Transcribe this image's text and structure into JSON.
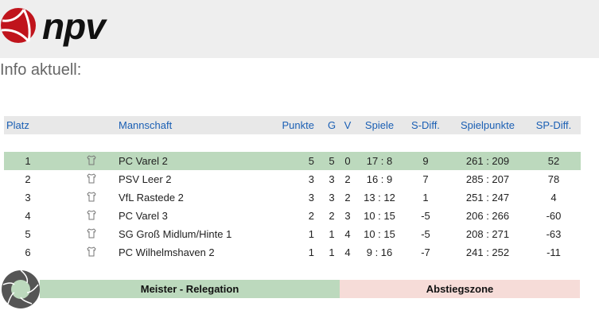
{
  "header": {
    "logo_text": "npv"
  },
  "info_title": "Info aktuell:",
  "table": {
    "columns": [
      "Platz",
      "Mannschaft",
      "Punkte",
      "G",
      "V",
      "Spiele",
      "S-Diff.",
      "Spielpunkte",
      "SP-Diff."
    ],
    "rows": [
      {
        "platz": "1",
        "team": "PC Varel 2",
        "punkte": "5",
        "g": "5",
        "v": "0",
        "spiele": "17 : 8",
        "sdiff": "9",
        "spielpunkte": "261 : 209",
        "spdiff": "52"
      },
      {
        "platz": "2",
        "team": "PSV Leer 2",
        "punkte": "3",
        "g": "3",
        "v": "2",
        "spiele": "16 : 9",
        "sdiff": "7",
        "spielpunkte": "285 : 207",
        "spdiff": "78"
      },
      {
        "platz": "3",
        "team": "VfL Rastede 2",
        "punkte": "3",
        "g": "3",
        "v": "2",
        "spiele": "13 : 12",
        "sdiff": "1",
        "spielpunkte": "251 : 247",
        "spdiff": "4"
      },
      {
        "platz": "4",
        "team": "PC Varel 3",
        "punkte": "2",
        "g": "2",
        "v": "3",
        "spiele": "10 : 15",
        "sdiff": "-5",
        "spielpunkte": "206 : 266",
        "spdiff": "-60"
      },
      {
        "platz": "5",
        "team": "SG Groß Midlum/Hinte 1",
        "punkte": "1",
        "g": "1",
        "v": "4",
        "spiele": "10 : 15",
        "sdiff": "-5",
        "spielpunkte": "208 : 271",
        "spdiff": "-63"
      },
      {
        "platz": "6",
        "team": "PC Wilhelmshaven 2",
        "punkte": "1",
        "g": "1",
        "v": "4",
        "spiele": "9 : 16",
        "sdiff": "-7",
        "spielpunkte": "241 : 252",
        "spdiff": "-11"
      }
    ]
  },
  "legend": {
    "promotion": "Meister - Relegation",
    "relegation": "Abstiegszone"
  },
  "colors": {
    "brand": "#c0141c",
    "header_link": "#1a5fb4",
    "promotion": "#bcd9bd",
    "relegation": "#f6dcd8"
  }
}
